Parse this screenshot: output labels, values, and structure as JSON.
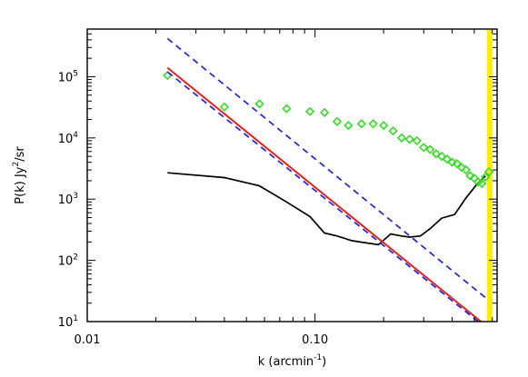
{
  "chart_data": {
    "type": "line",
    "title": "",
    "xlabel": "k (arcmin",
    "xlabel_sup": "-1",
    "xlabel_suffix": ")",
    "ylabel": "P(k)  Jy",
    "ylabel_sup": "2",
    "ylabel_suffix": "/sr",
    "x_scale": "log",
    "y_scale": "log",
    "xlim": [
      0.01,
      0.63
    ],
    "ylim": [
      10,
      600000
    ],
    "grid": false,
    "x_ticks": [
      {
        "value": 0.01,
        "label": "0.01"
      },
      {
        "value": 0.1,
        "label": "0.10"
      }
    ],
    "y_ticks": [
      {
        "value": 10,
        "base": "10",
        "exp": "1"
      },
      {
        "value": 100,
        "base": "10",
        "exp": "2"
      },
      {
        "value": 1000,
        "base": "10",
        "exp": "3"
      },
      {
        "value": 10000,
        "base": "10",
        "exp": "4"
      },
      {
        "value": 100000,
        "base": "10",
        "exp": "5"
      }
    ],
    "series": [
      {
        "style": "line",
        "color": "#000000",
        "x": [
          0.0225,
          0.04,
          0.057,
          0.075,
          0.095,
          0.11,
          0.125,
          0.145,
          0.165,
          0.19,
          0.215,
          0.24,
          0.26,
          0.29,
          0.32,
          0.36,
          0.41,
          0.46,
          0.51,
          0.56
        ],
        "y": [
          2700,
          2250,
          1650,
          900,
          520,
          280,
          250,
          210,
          195,
          180,
          270,
          250,
          240,
          250,
          330,
          490,
          560,
          1050,
          1700,
          2400
        ]
      },
      {
        "style": "diamond",
        "color": "#33dd22",
        "x": [
          0.0225,
          0.04,
          0.057,
          0.075,
          0.095,
          0.11,
          0.125,
          0.14,
          0.16,
          0.18,
          0.2,
          0.22,
          0.24,
          0.26,
          0.28,
          0.3,
          0.32,
          0.34,
          0.36,
          0.38,
          0.4,
          0.42,
          0.44,
          0.46,
          0.48,
          0.5,
          0.52,
          0.54,
          0.56,
          0.58
        ],
        "y": [
          105000,
          32000,
          36000,
          30000,
          27000,
          26000,
          18500,
          16000,
          17000,
          17000,
          16000,
          13000,
          10000,
          9500,
          9000,
          7000,
          6500,
          5500,
          5000,
          4500,
          4000,
          3800,
          3300,
          3000,
          2400,
          2200,
          1900,
          1800,
          2300,
          2800
        ]
      },
      {
        "style": "line",
        "color": "#e8201a",
        "x": [
          0.0225,
          0.535
        ],
        "y": [
          140000,
          10
        ]
      },
      {
        "style": "dashed",
        "color": "#2222dd",
        "x": [
          0.0225,
          0.565
        ],
        "y": [
          420000,
          24
        ]
      },
      {
        "style": "dashed",
        "color": "#2222dd",
        "x": [
          0.0225,
          0.52
        ],
        "y": [
          120000,
          10
        ]
      }
    ],
    "vertical_line": {
      "x": 0.585,
      "color": "#ffee00"
    }
  }
}
